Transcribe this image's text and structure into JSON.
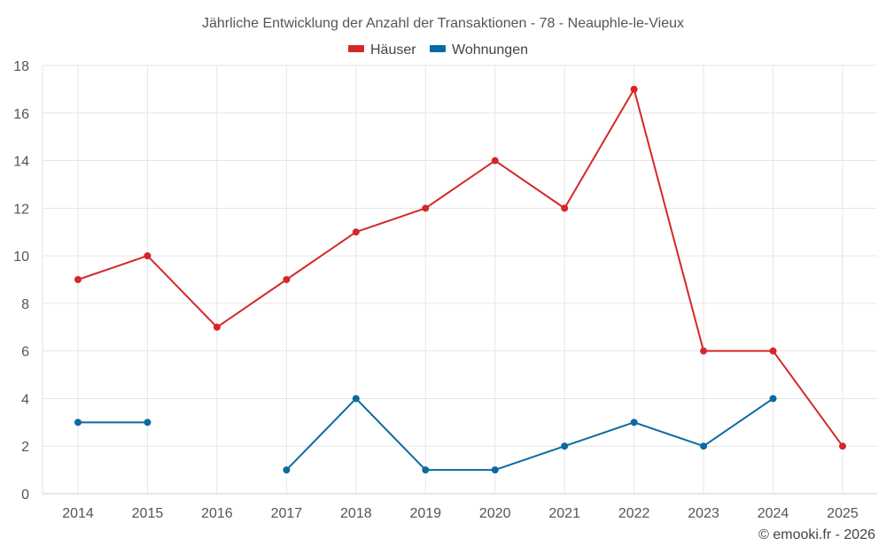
{
  "chart_data": {
    "type": "line",
    "title": "Jährliche Entwicklung der Anzahl der Transaktionen - 78 - Neauphle-le-Vieux",
    "categories": [
      "2014",
      "2015",
      "2016",
      "2017",
      "2018",
      "2019",
      "2020",
      "2021",
      "2022",
      "2023",
      "2024",
      "2025"
    ],
    "series": [
      {
        "name": "Häuser",
        "color": "#d62728",
        "values": [
          9,
          10,
          7,
          9,
          11,
          12,
          14,
          12,
          17,
          6,
          6,
          2
        ]
      },
      {
        "name": "Wohnungen",
        "color": "#0b6aa2",
        "values": [
          3,
          3,
          null,
          1,
          4,
          1,
          1,
          2,
          3,
          2,
          4,
          null
        ]
      }
    ],
    "ylim": [
      0,
      18
    ],
    "yticks": [
      "0",
      "2",
      "4",
      "6",
      "8",
      "10",
      "12",
      "14",
      "16",
      "18"
    ],
    "xlabel": "",
    "ylabel": "",
    "legend": "top-center",
    "grid": true
  },
  "footer": {
    "credit": "© emooki.fr - 2026"
  }
}
